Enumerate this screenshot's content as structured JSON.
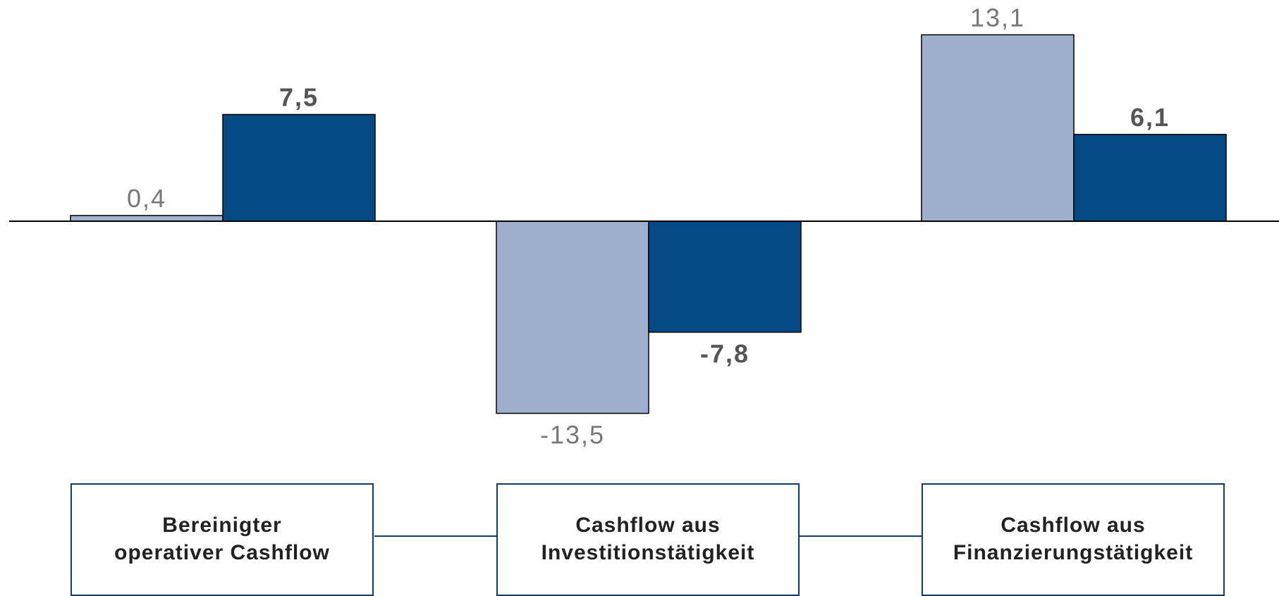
{
  "colors": {
    "prior": "#9eb0ce",
    "current": "#044a84",
    "border": "#0f3d6b"
  },
  "chart_data": {
    "type": "bar",
    "categories": [
      "Bereinigter\noperativer Cashflow",
      "Cashflow aus\nInvestitionstätigkeit",
      "Cashflow aus\nFinanzierungstätigkeit"
    ],
    "series": [
      {
        "values": [
          0.4,
          -13.5,
          13.1
        ],
        "labels": [
          "0,4",
          "-13,5",
          "13,1"
        ]
      },
      {
        "values": [
          7.5,
          -7.8,
          6.1
        ],
        "labels": [
          "7,5",
          "-7,8",
          "6,1"
        ]
      }
    ],
    "title": "",
    "xlabel": "",
    "ylabel": "",
    "ylim": [
      -15,
      15
    ],
    "grid": false,
    "legend": "none"
  }
}
